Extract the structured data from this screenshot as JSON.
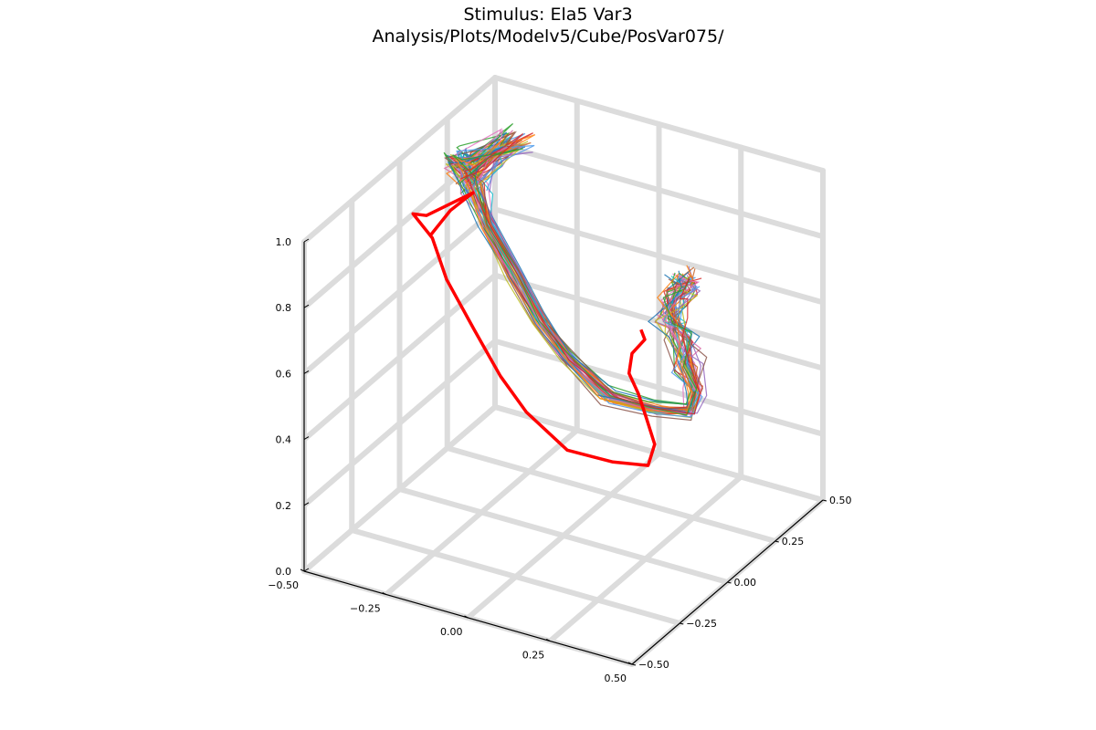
{
  "chart_data": {
    "type": "line",
    "projection": "3d",
    "title": "Stimulus: Ela5 Var3",
    "subtitle": "Analysis/Plots/Modelv5/Cube/PosVar075/",
    "xlim": [
      -0.5,
      0.5
    ],
    "ylim": [
      -0.5,
      0.5
    ],
    "zlim": [
      0.0,
      1.0
    ],
    "x_ticks": [
      "−0.50",
      "−0.25",
      "0.00",
      "0.25",
      "0.50"
    ],
    "y_ticks": [
      "−0.50",
      "−0.25",
      "0.00",
      "0.25",
      "0.50"
    ],
    "z_ticks": [
      "0.0",
      "0.2",
      "0.4",
      "0.6",
      "0.8",
      "1.0"
    ],
    "grid": true,
    "legend": "none",
    "reference_series": {
      "color": "#ff0000",
      "points": [
        [
          -0.42,
          0.02,
          0.78
        ],
        [
          -0.38,
          0.06,
          0.85
        ],
        [
          -0.34,
          0.11,
          0.89
        ],
        [
          -0.36,
          -0.1,
          0.92
        ],
        [
          -0.36,
          -0.17,
          0.96
        ],
        [
          -0.33,
          -0.12,
          0.87
        ],
        [
          -0.31,
          -0.08,
          0.73
        ],
        [
          -0.26,
          -0.02,
          0.56
        ],
        [
          -0.21,
          0.03,
          0.41
        ],
        [
          -0.16,
          0.08,
          0.29
        ],
        [
          -0.07,
          0.14,
          0.17
        ],
        [
          0.04,
          0.19,
          0.14
        ],
        [
          0.13,
          0.22,
          0.14
        ],
        [
          0.15,
          0.22,
          0.21
        ],
        [
          0.13,
          0.21,
          0.29
        ],
        [
          0.1,
          0.22,
          0.35
        ],
        [
          0.06,
          0.24,
          0.39
        ],
        [
          0.04,
          0.29,
          0.42
        ],
        [
          0.05,
          0.34,
          0.44
        ],
        [
          0.05,
          0.32,
          0.48
        ]
      ]
    },
    "trajectory_colors": [
      "#1f77b4",
      "#ff7f0e",
      "#2ca02c",
      "#d62728",
      "#9467bd",
      "#8c564b",
      "#e377c2",
      "#17becf",
      "#bcbd22",
      "#4c9aeb",
      "#c9652a",
      "#d96aa6"
    ],
    "trajectory_count": 40
  }
}
